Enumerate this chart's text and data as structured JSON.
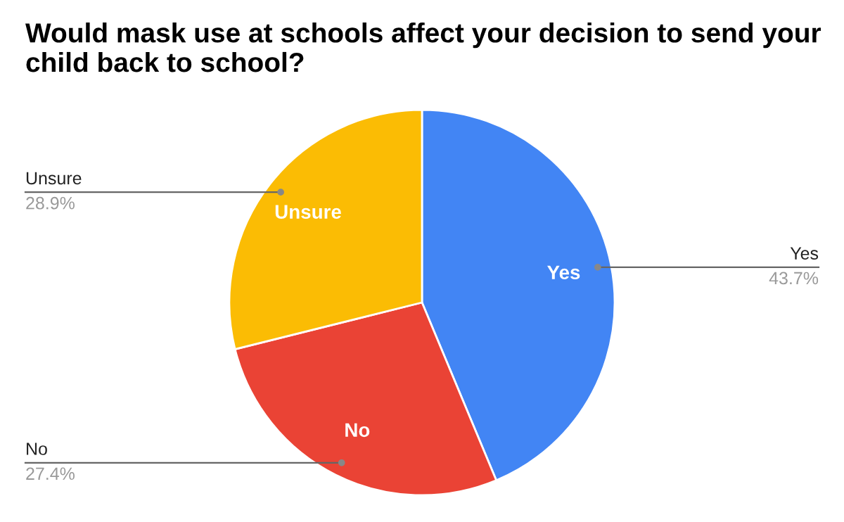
{
  "chart_data": {
    "type": "pie",
    "title": "Would mask use at schools affect your decision to send your child back to school?",
    "categories": [
      "Yes",
      "No",
      "Unsure"
    ],
    "values": [
      43.7,
      27.4,
      28.9
    ],
    "colors": [
      "#4285f4",
      "#ea4335",
      "#fbbc04"
    ],
    "value_labels": [
      "43.7%",
      "27.4%",
      "28.9%"
    ],
    "legend": false
  }
}
